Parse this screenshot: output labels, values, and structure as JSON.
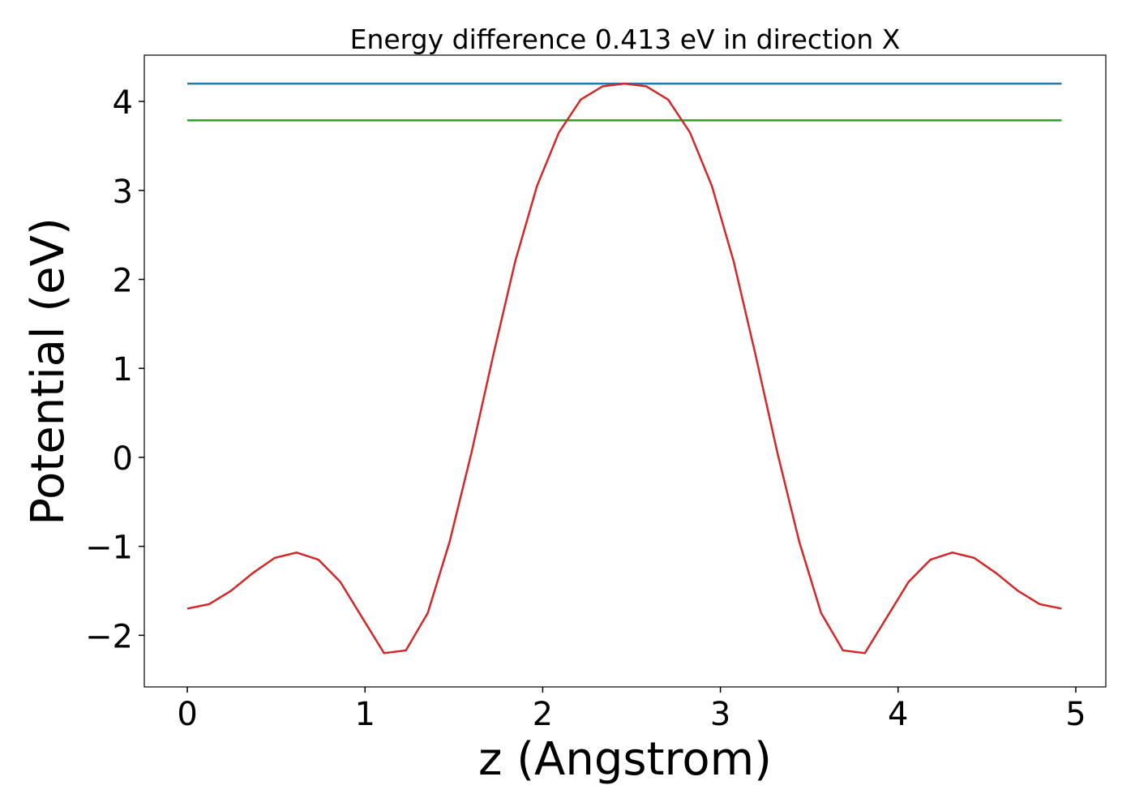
{
  "chart_data": {
    "type": "line",
    "title": "Energy difference 0.413 eV in direction X",
    "x_label": "z (Angstrom)",
    "y_label": "Potential (eV)",
    "xlim": [
      -0.242,
      5.169
    ],
    "ylim": [
      -2.58,
      4.52
    ],
    "xticks": [
      0,
      1,
      2,
      3,
      4,
      5
    ],
    "yticks": [
      {
        "value": -2,
        "label": "−2"
      },
      {
        "value": -1,
        "label": "−1"
      },
      0,
      1,
      2,
      3,
      4
    ],
    "grid": false,
    "series": [
      {
        "color": "#1f77b4",
        "x": [
          0,
          4.92
        ],
        "values": [
          4.2,
          4.2
        ]
      },
      {
        "color": "#2ca02c",
        "x": [
          0,
          4.92
        ],
        "values": [
          3.787,
          3.787
        ]
      },
      {
        "color": "#d62728",
        "x": [
          0,
          0.123,
          0.246,
          0.369,
          0.492,
          0.615,
          0.738,
          0.861,
          0.984,
          1.107,
          1.23,
          1.353,
          1.476,
          1.599,
          1.722,
          1.845,
          1.968,
          2.091,
          2.214,
          2.337,
          2.46,
          2.583,
          2.706,
          2.829,
          2.952,
          3.075,
          3.198,
          3.321,
          3.444,
          3.567,
          3.69,
          3.813,
          3.936,
          4.059,
          4.182,
          4.305,
          4.428,
          4.551,
          4.674,
          4.797,
          4.92
        ],
        "values": [
          -1.7,
          -1.65,
          -1.5,
          -1.3,
          -1.13,
          -1.07,
          -1.15,
          -1.4,
          -1.8,
          -2.2,
          -2.17,
          -1.75,
          -0.95,
          0.05,
          1.15,
          2.2,
          3.05,
          3.65,
          4.02,
          4.17,
          4.2,
          4.17,
          4.02,
          3.65,
          3.05,
          2.2,
          1.15,
          0.05,
          -0.95,
          -1.75,
          -2.17,
          -2.2,
          -1.8,
          -1.4,
          -1.15,
          -1.07,
          -1.13,
          -1.3,
          -1.5,
          -1.65,
          -1.7
        ]
      }
    ]
  }
}
